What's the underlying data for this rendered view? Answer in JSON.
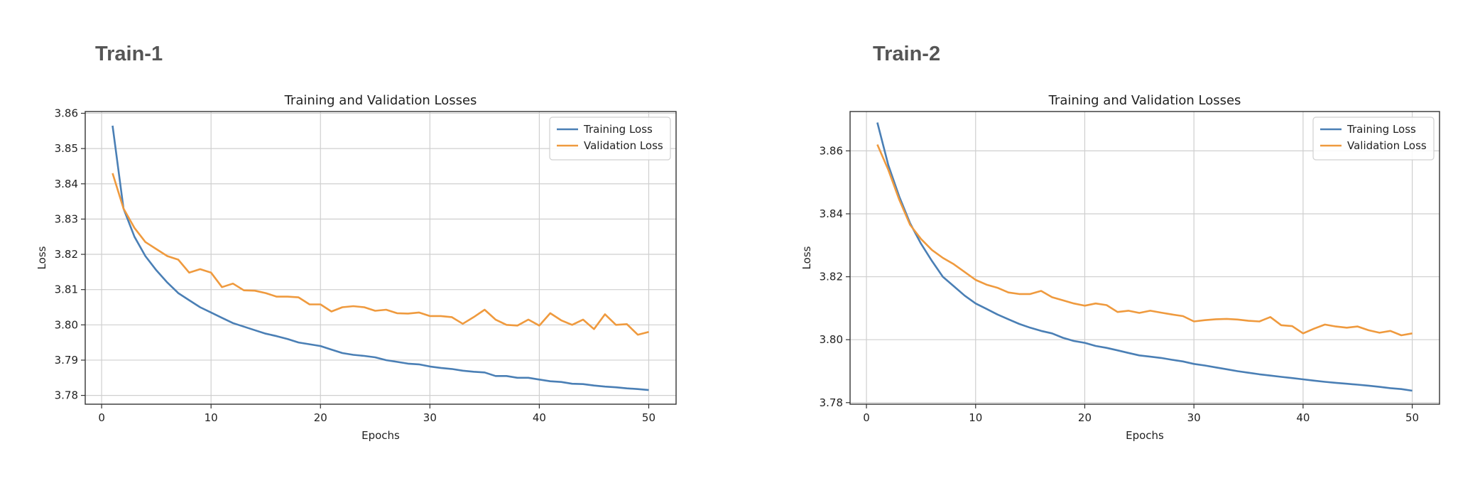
{
  "panels": [
    {
      "heading": "Train-1"
    },
    {
      "heading": "Train-2"
    }
  ],
  "colors": {
    "training": "#4a7fb5",
    "validation": "#ef9a3e",
    "grid": "#cfcfcf",
    "frame": "#333333"
  },
  "chart_data": [
    {
      "type": "line",
      "title": "Training and Validation Losses",
      "xlabel": "Epochs",
      "ylabel": "Loss",
      "xlim": [
        -1.5,
        52.5
      ],
      "ylim": [
        3.7775,
        3.8605
      ],
      "xticks": [
        0,
        10,
        20,
        30,
        40,
        50
      ],
      "yticks": [
        3.78,
        3.79,
        3.8,
        3.81,
        3.82,
        3.83,
        3.84,
        3.85,
        3.86
      ],
      "grid": true,
      "legend": "top-right",
      "x": [
        1,
        2,
        3,
        4,
        5,
        6,
        7,
        8,
        9,
        10,
        11,
        12,
        13,
        14,
        15,
        16,
        17,
        18,
        19,
        20,
        21,
        22,
        23,
        24,
        25,
        26,
        27,
        28,
        29,
        30,
        31,
        32,
        33,
        34,
        35,
        36,
        37,
        38,
        39,
        40,
        41,
        42,
        43,
        44,
        45,
        46,
        47,
        48,
        49,
        50
      ],
      "series": [
        {
          "name": "Training Loss",
          "values": [
            3.8565,
            3.833,
            3.825,
            3.8195,
            3.8155,
            3.812,
            3.809,
            3.807,
            3.805,
            3.8035,
            3.802,
            3.8005,
            3.7995,
            3.7985,
            3.7975,
            3.7968,
            3.796,
            3.795,
            3.7945,
            3.794,
            3.793,
            3.792,
            3.7915,
            3.7912,
            3.7908,
            3.79,
            3.7895,
            3.789,
            3.7888,
            3.7882,
            3.7878,
            3.7875,
            3.787,
            3.7867,
            3.7865,
            3.7855,
            3.7855,
            3.785,
            3.785,
            3.7845,
            3.784,
            3.7838,
            3.7833,
            3.7832,
            3.7828,
            3.7825,
            3.7823,
            3.782,
            3.7818,
            3.7815
          ]
        },
        {
          "name": "Validation Loss",
          "values": [
            3.843,
            3.833,
            3.8275,
            3.8235,
            3.8215,
            3.8195,
            3.8185,
            3.8148,
            3.8158,
            3.8148,
            3.8107,
            3.8117,
            3.8098,
            3.8097,
            3.809,
            3.808,
            3.808,
            3.8078,
            3.8058,
            3.8058,
            3.8038,
            3.805,
            3.8053,
            3.805,
            3.804,
            3.8043,
            3.8033,
            3.8032,
            3.8035,
            3.8025,
            3.8025,
            3.8022,
            3.8003,
            3.8022,
            3.8043,
            3.8015,
            3.8,
            3.7998,
            3.8015,
            3.7998,
            3.8033,
            3.8013,
            3.8,
            3.8015,
            3.7988,
            3.803,
            3.8,
            3.8002,
            3.7972,
            3.798
          ]
        }
      ]
    },
    {
      "type": "line",
      "title": "Training and Validation Losses",
      "xlabel": "Epochs",
      "ylabel": "Loss",
      "xlim": [
        -1.5,
        52.5
      ],
      "ylim": [
        3.7795,
        3.8725
      ],
      "xticks": [
        0,
        10,
        20,
        30,
        40,
        50
      ],
      "yticks": [
        3.78,
        3.8,
        3.82,
        3.84,
        3.86
      ],
      "grid": true,
      "legend": "top-right",
      "x": [
        1,
        2,
        3,
        4,
        5,
        6,
        7,
        8,
        9,
        10,
        11,
        12,
        13,
        14,
        15,
        16,
        17,
        18,
        19,
        20,
        21,
        22,
        23,
        24,
        25,
        26,
        27,
        28,
        29,
        30,
        31,
        32,
        33,
        34,
        35,
        36,
        37,
        38,
        39,
        40,
        41,
        42,
        43,
        44,
        45,
        46,
        47,
        48,
        49,
        50
      ],
      "series": [
        {
          "name": "Training Loss",
          "values": [
            3.869,
            3.8555,
            3.8455,
            3.837,
            3.8305,
            3.825,
            3.82,
            3.817,
            3.814,
            3.8115,
            3.8098,
            3.808,
            3.8065,
            3.805,
            3.8038,
            3.8028,
            3.802,
            3.8006,
            3.7996,
            3.799,
            3.798,
            3.7974,
            3.7966,
            3.7958,
            3.795,
            3.7946,
            3.7942,
            3.7936,
            3.7931,
            3.7923,
            3.7918,
            3.7912,
            3.7906,
            3.79,
            3.7895,
            3.789,
            3.7886,
            3.7882,
            3.7878,
            3.7874,
            3.787,
            3.7866,
            3.7863,
            3.786,
            3.7857,
            3.7854,
            3.785,
            3.7846,
            3.7843,
            3.7838
          ]
        },
        {
          "name": "Validation Loss",
          "values": [
            3.862,
            3.854,
            3.8445,
            3.8365,
            3.832,
            3.8285,
            3.826,
            3.824,
            3.8215,
            3.819,
            3.8175,
            3.8165,
            3.815,
            3.8145,
            3.8145,
            3.8155,
            3.8135,
            3.8125,
            3.8115,
            3.8108,
            3.8115,
            3.811,
            3.8088,
            3.8092,
            3.8085,
            3.8092,
            3.8086,
            3.808,
            3.8075,
            3.8058,
            3.8062,
            3.8065,
            3.8066,
            3.8064,
            3.806,
            3.8058,
            3.8072,
            3.8046,
            3.8043,
            3.802,
            3.8035,
            3.8048,
            3.8042,
            3.8038,
            3.8042,
            3.803,
            3.8022,
            3.8028,
            3.8014,
            3.802
          ]
        }
      ]
    }
  ]
}
